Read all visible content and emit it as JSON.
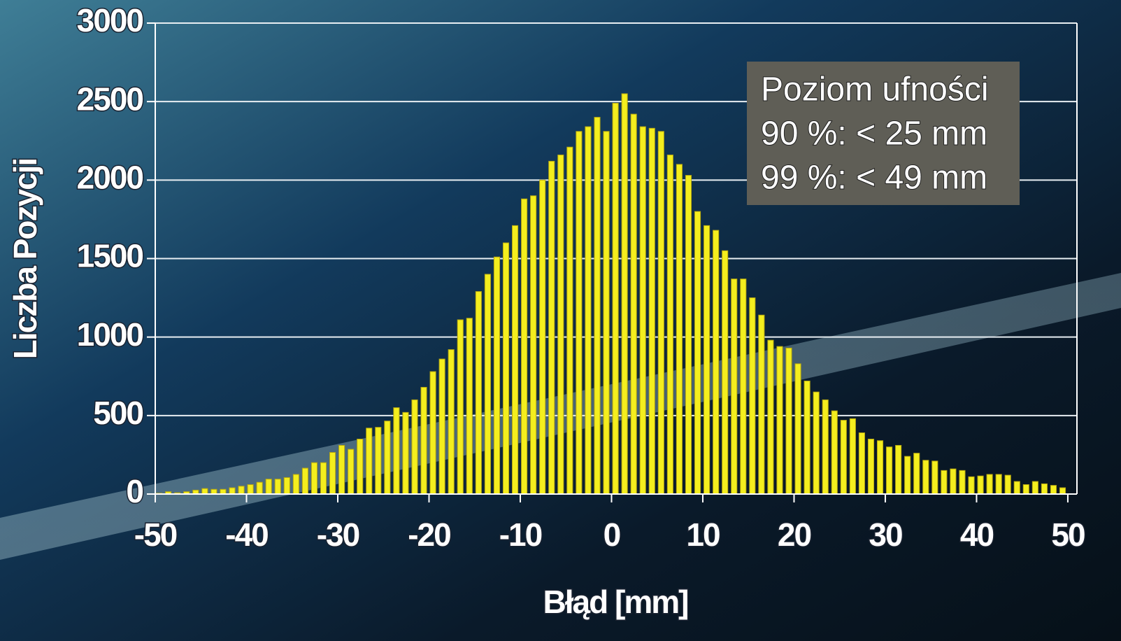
{
  "chart_data": {
    "type": "histogram",
    "x_label": "Błąd [mm]",
    "y_label": "Liczba Pozycji",
    "annotation": [
      "Poziom ufności",
      "90 %: < 25 mm",
      "99 %: < 49 mm"
    ],
    "color": "#f4ee1e",
    "bins": [
      -50,
      -49,
      -48,
      -47,
      -46,
      -45,
      -44,
      -43,
      -42,
      -41,
      -40,
      -39,
      -38,
      -37,
      -36,
      -35,
      -34,
      -33,
      -32,
      -31,
      -30,
      -29,
      -28,
      -27,
      -26,
      -25,
      -24,
      -23,
      -22,
      -21,
      -20,
      -19,
      -18,
      -17,
      -16,
      -15,
      -14,
      -13,
      -12,
      -11,
      -10,
      -9,
      -8,
      -7,
      -6,
      -5,
      -4,
      -3,
      -2,
      -1,
      0,
      1,
      2,
      3,
      4,
      5,
      6,
      7,
      8,
      9,
      10,
      11,
      12,
      13,
      14,
      15,
      16,
      17,
      18,
      19,
      20,
      21,
      22,
      23,
      24,
      25,
      26,
      27,
      28,
      29,
      30,
      31,
      32,
      33,
      34,
      35,
      36,
      37,
      38,
      39,
      40,
      41,
      42,
      43,
      44,
      45,
      46,
      47,
      48,
      49,
      50
    ],
    "values": [
      5,
      15,
      8,
      15,
      25,
      35,
      30,
      30,
      40,
      50,
      60,
      75,
      95,
      95,
      105,
      125,
      165,
      200,
      200,
      265,
      310,
      285,
      350,
      420,
      425,
      465,
      550,
      520,
      600,
      680,
      780,
      860,
      920,
      1110,
      1120,
      1290,
      1400,
      1510,
      1600,
      1710,
      1880,
      1900,
      2000,
      2120,
      2160,
      2210,
      2310,
      2340,
      2400,
      2310,
      2490,
      2550,
      2420,
      2340,
      2330,
      2310,
      2160,
      2100,
      2030,
      1800,
      1710,
      1680,
      1550,
      1370,
      1370,
      1250,
      1140,
      980,
      940,
      930,
      830,
      720,
      650,
      600,
      530,
      470,
      480,
      390,
      350,
      340,
      300,
      310,
      240,
      260,
      215,
      210,
      150,
      160,
      150,
      110,
      115,
      125,
      125,
      120,
      80,
      60,
      80,
      65,
      55,
      40
    ],
    "xlim": [
      -50,
      51
    ],
    "ylim": [
      0,
      3000
    ],
    "xticks": [
      -50,
      -40,
      -30,
      -20,
      -10,
      0,
      10,
      20,
      30,
      40,
      50
    ],
    "yticks": [
      0,
      500,
      1000,
      1500,
      2000,
      2500,
      3000
    ],
    "grid": true
  }
}
